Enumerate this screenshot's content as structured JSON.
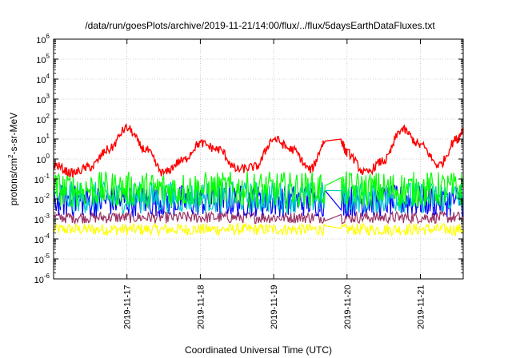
{
  "chart_data": {
    "type": "line",
    "title": "/data/run/goesPlots/archive/2019-11-21/14:00/flux/../flux/5daysEarthDataFluxes.txt",
    "xlabel": "Coordinated Universal Time (UTC)",
    "ylabel": "protons/cm²-s-sr-MeV",
    "ylabel_parts": {
      "prefix": "protons/cm",
      "sup": "2",
      "suffix": "-s-sr-MeV"
    },
    "yscale": "log",
    "ylim": [
      1e-06,
      1000000.0
    ],
    "y_ticks": [
      {
        "base": "10",
        "exp": "-6"
      },
      {
        "base": "10",
        "exp": "-5"
      },
      {
        "base": "10",
        "exp": "-4"
      },
      {
        "base": "10",
        "exp": "-3"
      },
      {
        "base": "10",
        "exp": "-2"
      },
      {
        "base": "10",
        "exp": "-1"
      },
      {
        "base": "10",
        "exp": "0"
      },
      {
        "base": "10",
        "exp": "1"
      },
      {
        "base": "10",
        "exp": "2"
      },
      {
        "base": "10",
        "exp": "3"
      },
      {
        "base": "10",
        "exp": "4"
      },
      {
        "base": "10",
        "exp": "5"
      },
      {
        "base": "10",
        "exp": "6"
      }
    ],
    "xlim": [
      "2019-11-16 00:00",
      "2019-11-21 14:00"
    ],
    "x_ticks": [
      "2019-11-17",
      "2019-11-18",
      "2019-11-19",
      "2019-11-20",
      "2019-11-21"
    ],
    "grid": true,
    "legend": "none",
    "gap": {
      "start": "2019-11-19 17:00",
      "end": "2019-11-19 22:00"
    },
    "series": [
      {
        "color": "#ff0000",
        "x": [
          "2019-11-16 00:00",
          "2019-11-16 06:00",
          "2019-11-16 12:00",
          "2019-11-16 18:00",
          "2019-11-17 00:00",
          "2019-11-17 06:00",
          "2019-11-17 12:00",
          "2019-11-17 18:00",
          "2019-11-18 00:00",
          "2019-11-18 06:00",
          "2019-11-18 12:00",
          "2019-11-18 18:00",
          "2019-11-19 00:00",
          "2019-11-19 06:00",
          "2019-11-19 12:00",
          "2019-11-19 17:00",
          "2019-11-19 22:00",
          "2019-11-20 00:00",
          "2019-11-20 06:00",
          "2019-11-20 12:00",
          "2019-11-20 18:00",
          "2019-11-21 00:00",
          "2019-11-21 06:00",
          "2019-11-21 12:00",
          "2019-11-21 14:00"
        ],
        "values": [
          0.5,
          0.2,
          0.4,
          3,
          35,
          3,
          0.2,
          0.8,
          6,
          3,
          0.3,
          0.4,
          10,
          3,
          0.3,
          8,
          8,
          2,
          0.2,
          0.8,
          30,
          5,
          0.5,
          10,
          30
        ]
      },
      {
        "color": "#00ff00",
        "baseline": 0.03,
        "spread": 0.9
      },
      {
        "color": "#00cccc",
        "baseline": 0.012,
        "spread": 0.8
      },
      {
        "color": "#0000ff",
        "baseline": 0.008,
        "spread": 0.8
      },
      {
        "color": "#993366",
        "baseline": 0.0012,
        "spread": 0.3
      },
      {
        "color": "#ffff00",
        "baseline": 0.0003,
        "spread": 0.3
      }
    ]
  }
}
